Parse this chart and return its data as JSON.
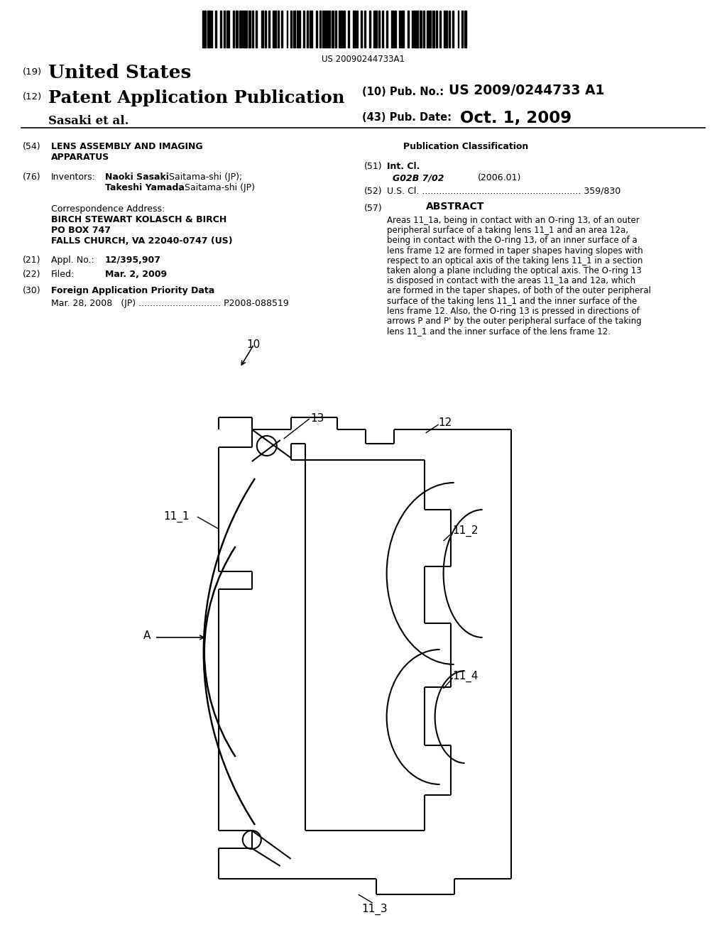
{
  "bg_color": "#ffffff",
  "page_width": 10.24,
  "page_height": 13.2,
  "barcode_text": "US 20090244733A1",
  "pub_no_label": "(10) Pub. No.:",
  "pub_no": "US 2009/0244733 A1",
  "inventor_line": "Sasaki et al.",
  "pub_date_label": "(43) Pub. Date:",
  "pub_date": "Oct. 1, 2009",
  "abstract_lines": [
    "Areas 11_1a, being in contact with an O-ring 13, of an outer",
    "peripheral surface of a taking lens 11_1 and an area 12a,",
    "being in contact with the O-ring 13, of an inner surface of a",
    "lens frame 12 are formed in taper shapes having slopes with",
    "respect to an optical axis of the taking lens 11_1 in a section",
    "taken along a plane including the optical axis. The O-ring 13",
    "is disposed in contact with the areas 11_1a and 12a, which",
    "are formed in the taper shapes, of both of the outer peripheral",
    "surface of the taking lens 11_1 and the inner surface of the",
    "lens frame 12. Also, the O-ring 13 is pressed in directions of",
    "arrows P and P' by the outer peripheral surface of the taking",
    "lens 11_1 and the inner surface of the lens frame 12."
  ]
}
